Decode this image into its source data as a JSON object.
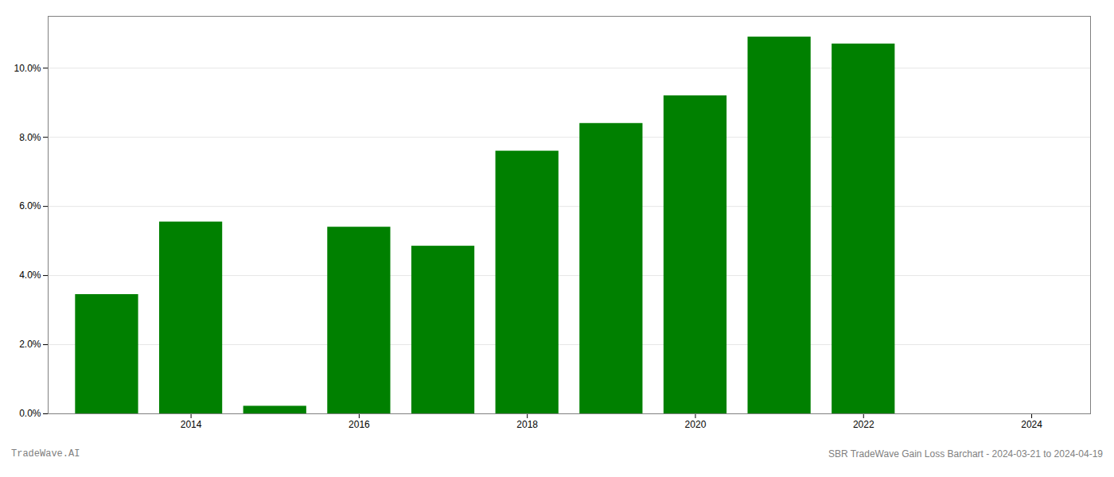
{
  "chart_data": {
    "type": "bar",
    "x": [
      2013,
      2014,
      2015,
      2016,
      2017,
      2018,
      2019,
      2020,
      2021,
      2022
    ],
    "values": [
      0.0345,
      0.0555,
      0.0022,
      0.054,
      0.0485,
      0.076,
      0.084,
      0.092,
      0.109,
      0.107
    ],
    "color": "#008000",
    "xlim": [
      2012.3,
      2024.7
    ],
    "xticks": [
      2014,
      2016,
      2018,
      2020,
      2022,
      2024
    ],
    "ylim": [
      0,
      0.115
    ],
    "yticks": [
      {
        "value": 0.0,
        "label": "0.0%"
      },
      {
        "value": 0.02,
        "label": "2.0%"
      },
      {
        "value": 0.04,
        "label": "4.0%"
      },
      {
        "value": 0.06,
        "label": "6.0%"
      },
      {
        "value": 0.08,
        "label": "8.0%"
      },
      {
        "value": 0.1,
        "label": "10.0%"
      }
    ],
    "grid": true,
    "annotations": [
      "TradeWave.AI",
      "SBR TradeWave Gain Loss Barchart - 2024-03-21 to 2024-04-19"
    ]
  }
}
